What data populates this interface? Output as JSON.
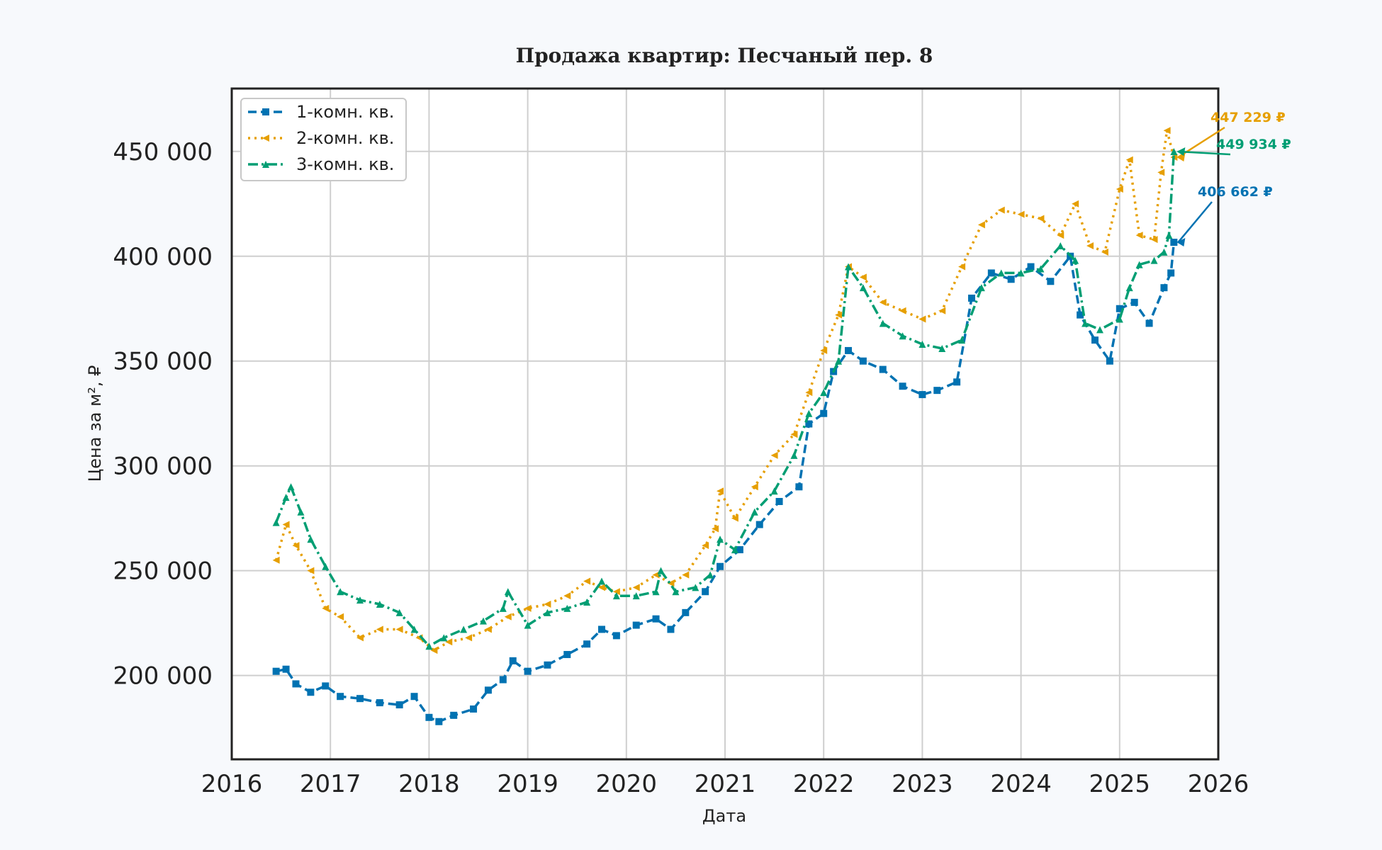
{
  "chart_data": {
    "type": "line",
    "title": "Продажа квартир: Песчаный пер. 8",
    "xlabel": "Дата",
    "ylabel": "Цена за м², ₽",
    "xlim": [
      2016,
      2026
    ],
    "ylim": [
      160000,
      480000
    ],
    "x_ticks": [
      "2016",
      "2017",
      "2018",
      "2019",
      "2020",
      "2021",
      "2022",
      "2023",
      "2024",
      "2025",
      "2026"
    ],
    "y_ticks": [
      "200 000",
      "250 000",
      "300 000",
      "350 000",
      "400 000",
      "450 000"
    ],
    "y_tick_values": [
      200000,
      250000,
      300000,
      350000,
      400000,
      450000
    ],
    "grid": true,
    "legend_position": "top-left",
    "series": [
      {
        "name": "1-комн. кв.",
        "color": "#0072b2",
        "style": "dashed",
        "marker": "square",
        "x": [
          2016.45,
          2016.55,
          2016.65,
          2016.8,
          2016.95,
          2017.1,
          2017.3,
          2017.5,
          2017.7,
          2017.85,
          2018.0,
          2018.1,
          2018.25,
          2018.45,
          2018.6,
          2018.75,
          2018.85,
          2019.0,
          2019.2,
          2019.4,
          2019.6,
          2019.75,
          2019.9,
          2020.1,
          2020.3,
          2020.45,
          2020.6,
          2020.8,
          2020.95,
          2021.15,
          2021.35,
          2021.55,
          2021.75,
          2021.85,
          2022.0,
          2022.1,
          2022.25,
          2022.4,
          2022.6,
          2022.8,
          2023.0,
          2023.15,
          2023.35,
          2023.5,
          2023.7,
          2023.9,
          2024.1,
          2024.3,
          2024.5,
          2024.6,
          2024.75,
          2024.9,
          2025.0,
          2025.15,
          2025.3,
          2025.45,
          2025.52,
          2025.55
        ],
        "y": [
          202000,
          203000,
          196000,
          192000,
          195000,
          190000,
          189000,
          187000,
          186000,
          190000,
          180000,
          178000,
          181000,
          184000,
          193000,
          198000,
          207000,
          202000,
          205000,
          210000,
          215000,
          222000,
          219000,
          224000,
          227000,
          222000,
          230000,
          240000,
          252000,
          260000,
          272000,
          283000,
          290000,
          320000,
          325000,
          345000,
          355000,
          350000,
          346000,
          338000,
          334000,
          336000,
          340000,
          380000,
          392000,
          389000,
          395000,
          388000,
          400000,
          372000,
          360000,
          350000,
          375000,
          378000,
          368000,
          385000,
          392000,
          406662
        ]
      },
      {
        "name": "2-комн. кв.",
        "color": "#e69f00",
        "style": "dotted",
        "marker": "triangle-left",
        "x": [
          2016.45,
          2016.55,
          2016.65,
          2016.8,
          2016.95,
          2017.1,
          2017.3,
          2017.5,
          2017.7,
          2017.9,
          2018.05,
          2018.2,
          2018.4,
          2018.6,
          2018.8,
          2019.0,
          2019.2,
          2019.4,
          2019.6,
          2019.75,
          2019.9,
          2020.1,
          2020.3,
          2020.45,
          2020.6,
          2020.8,
          2020.9,
          2020.95,
          2021.1,
          2021.3,
          2021.5,
          2021.7,
          2021.85,
          2022.0,
          2022.15,
          2022.25,
          2022.4,
          2022.6,
          2022.8,
          2023.0,
          2023.2,
          2023.4,
          2023.6,
          2023.8,
          2024.0,
          2024.2,
          2024.4,
          2024.55,
          2024.7,
          2024.85,
          2025.0,
          2025.1,
          2025.2,
          2025.35,
          2025.42,
          2025.48,
          2025.55
        ],
        "y": [
          255000,
          272000,
          262000,
          250000,
          232000,
          228000,
          218000,
          222000,
          222000,
          218000,
          212000,
          216000,
          218000,
          222000,
          228000,
          232000,
          234000,
          238000,
          245000,
          242000,
          240000,
          242000,
          248000,
          244000,
          248000,
          262000,
          270000,
          288000,
          275000,
          290000,
          305000,
          315000,
          335000,
          355000,
          372000,
          395000,
          390000,
          378000,
          374000,
          370000,
          374000,
          395000,
          415000,
          422000,
          420000,
          418000,
          410000,
          425000,
          405000,
          402000,
          432000,
          446000,
          410000,
          408000,
          440000,
          460000,
          447229
        ]
      },
      {
        "name": "3-комн. кв.",
        "color": "#009e73",
        "style": "dashdot",
        "marker": "triangle-up",
        "x": [
          2016.45,
          2016.55,
          2016.6,
          2016.7,
          2016.8,
          2016.95,
          2017.1,
          2017.3,
          2017.5,
          2017.7,
          2017.85,
          2018.0,
          2018.15,
          2018.35,
          2018.55,
          2018.75,
          2018.8,
          2019.0,
          2019.2,
          2019.4,
          2019.6,
          2019.75,
          2019.9,
          2020.1,
          2020.3,
          2020.35,
          2020.5,
          2020.7,
          2020.85,
          2020.95,
          2021.1,
          2021.3,
          2021.5,
          2021.7,
          2021.85,
          2022.0,
          2022.15,
          2022.25,
          2022.4,
          2022.6,
          2022.8,
          2023.0,
          2023.2,
          2023.4,
          2023.6,
          2023.8,
          2024.0,
          2024.2,
          2024.4,
          2024.55,
          2024.65,
          2024.8,
          2025.0,
          2025.1,
          2025.2,
          2025.35,
          2025.45,
          2025.5,
          2025.55
        ],
        "y": [
          273000,
          285000,
          290000,
          278000,
          265000,
          252000,
          240000,
          236000,
          234000,
          230000,
          222000,
          214000,
          218000,
          222000,
          226000,
          232000,
          240000,
          224000,
          230000,
          232000,
          235000,
          245000,
          238000,
          238000,
          240000,
          250000,
          240000,
          242000,
          248000,
          265000,
          260000,
          278000,
          288000,
          305000,
          325000,
          335000,
          350000,
          395000,
          385000,
          368000,
          362000,
          358000,
          356000,
          360000,
          385000,
          392000,
          392000,
          394000,
          405000,
          398000,
          368000,
          365000,
          370000,
          385000,
          396000,
          398000,
          402000,
          410000,
          449934
        ]
      }
    ],
    "annotations": [
      {
        "text": "447 229 ₽",
        "series": 1,
        "color": "#e69f00"
      },
      {
        "text": "449 934 ₽",
        "series": 2,
        "color": "#009e73"
      },
      {
        "text": "406 662 ₽",
        "series": 0,
        "color": "#0072b2"
      }
    ]
  }
}
